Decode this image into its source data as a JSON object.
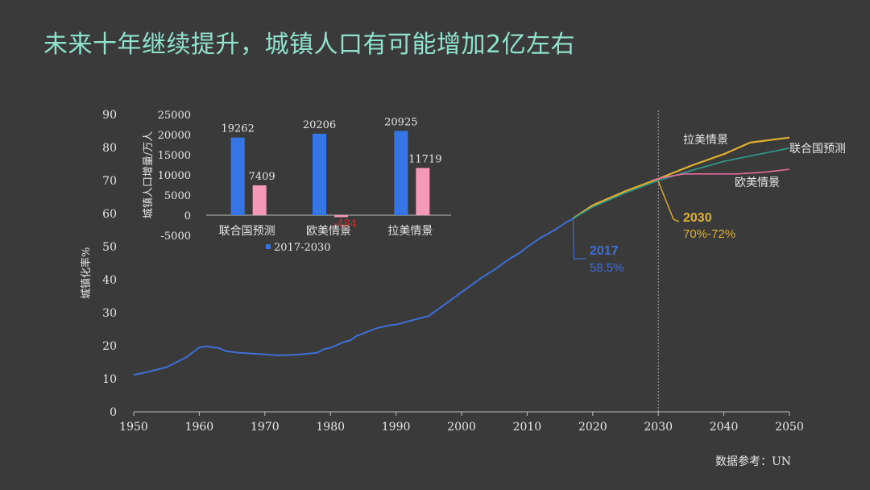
{
  "title": "未来十年继续提升，城镇人口有可能增加2亿左右",
  "source": "数据参考：UN",
  "colors": {
    "background": "#3a3a3a",
    "title": "#8fe3cc",
    "history": "#3e6fd6",
    "latam": "#e0b12f",
    "un": "#2f9c8f",
    "eu": "#e56a9c",
    "bar_blue": "#3575e8",
    "bar_pink": "#f49ab8",
    "axis_text": "#e6e6e6",
    "negative_label": "#d42d2d"
  },
  "chart_data": [
    {
      "type": "line",
      "ylabel": "城镇化率%",
      "xlim": [
        1950,
        2050
      ],
      "ylim": [
        0,
        90
      ],
      "x_ticks": [
        1950,
        1960,
        1970,
        1980,
        1990,
        2000,
        2010,
        2020,
        2030,
        2040,
        2050
      ],
      "y_ticks": [
        0,
        10,
        20,
        30,
        40,
        50,
        60,
        70,
        80,
        90
      ],
      "vline_x": 2030,
      "series": [
        {
          "key": "history",
          "points": [
            [
              1950,
              11.2
            ],
            [
              1952,
              12
            ],
            [
              1955,
              13.5
            ],
            [
              1958,
              16.5
            ],
            [
              1960,
              19.5
            ],
            [
              1961,
              19.8
            ],
            [
              1963,
              19.3
            ],
            [
              1964,
              18.4
            ],
            [
              1966,
              17.9
            ],
            [
              1970,
              17.4
            ],
            [
              1972,
              17.1
            ],
            [
              1974,
              17.2
            ],
            [
              1976,
              17.5
            ],
            [
              1978,
              17.9
            ],
            [
              1979,
              19
            ],
            [
              1980,
              19.4
            ],
            [
              1981,
              20.2
            ],
            [
              1982,
              21.1
            ],
            [
              1983,
              21.6
            ],
            [
              1984,
              23
            ],
            [
              1985,
              23.7
            ],
            [
              1987,
              25.3
            ],
            [
              1989,
              26.2
            ],
            [
              1990,
              26.4
            ],
            [
              1992,
              27.5
            ],
            [
              1995,
              29
            ],
            [
              2000,
              36.2
            ],
            [
              2003,
              40.5
            ],
            [
              2005,
              43
            ],
            [
              2007,
              45.9
            ],
            [
              2009,
              48.3
            ],
            [
              2010,
              49.9
            ],
            [
              2012,
              52.6
            ],
            [
              2014,
              54.8
            ],
            [
              2016,
              57.4
            ],
            [
              2017,
              58.5
            ]
          ]
        },
        {
          "key": "latam",
          "name": "拉美情景",
          "points": [
            [
              2017,
              58.5
            ],
            [
              2020,
              62.5
            ],
            [
              2025,
              66.8
            ],
            [
              2030,
              70.5
            ],
            [
              2035,
              74.5
            ],
            [
              2040,
              78
            ],
            [
              2044,
              81.5
            ],
            [
              2050,
              83
            ]
          ]
        },
        {
          "key": "un",
          "name": "联合国预测",
          "points": [
            [
              2017,
              58.5
            ],
            [
              2020,
              62
            ],
            [
              2025,
              66.3
            ],
            [
              2030,
              70
            ],
            [
              2035,
              73
            ],
            [
              2040,
              75.8
            ],
            [
              2045,
              77.8
            ],
            [
              2050,
              79.8
            ]
          ]
        },
        {
          "key": "eu",
          "name": "欧美情景",
          "points": [
            [
              2029,
              70
            ],
            [
              2030,
              70.6
            ],
            [
              2032,
              71.4
            ],
            [
              2034,
              72
            ],
            [
              2036,
              72
            ],
            [
              2042,
              72
            ],
            [
              2046,
              72.5
            ],
            [
              2050,
              73.4
            ]
          ]
        }
      ],
      "annotations": [
        {
          "key": "a2017",
          "title": "2017",
          "subtitle": "58.5%",
          "at": [
            2017,
            58.5
          ]
        },
        {
          "key": "a2030",
          "title": "2030",
          "subtitle": "70%-72%",
          "at": [
            2030,
            70.5
          ]
        }
      ]
    },
    {
      "type": "bar",
      "ylabel": "城镇人口增量/万人",
      "ylim": [
        -5000,
        25000
      ],
      "y_ticks": [
        -5000,
        0,
        5000,
        10000,
        15000,
        20000,
        25000
      ],
      "categories": [
        "联合国预测",
        "欧美情景",
        "拉美情景"
      ],
      "series": [
        {
          "name": "2017-2030",
          "values": [
            19262,
            20206,
            20925
          ]
        },
        {
          "values": [
            7409,
            -484,
            11719
          ]
        }
      ]
    }
  ]
}
